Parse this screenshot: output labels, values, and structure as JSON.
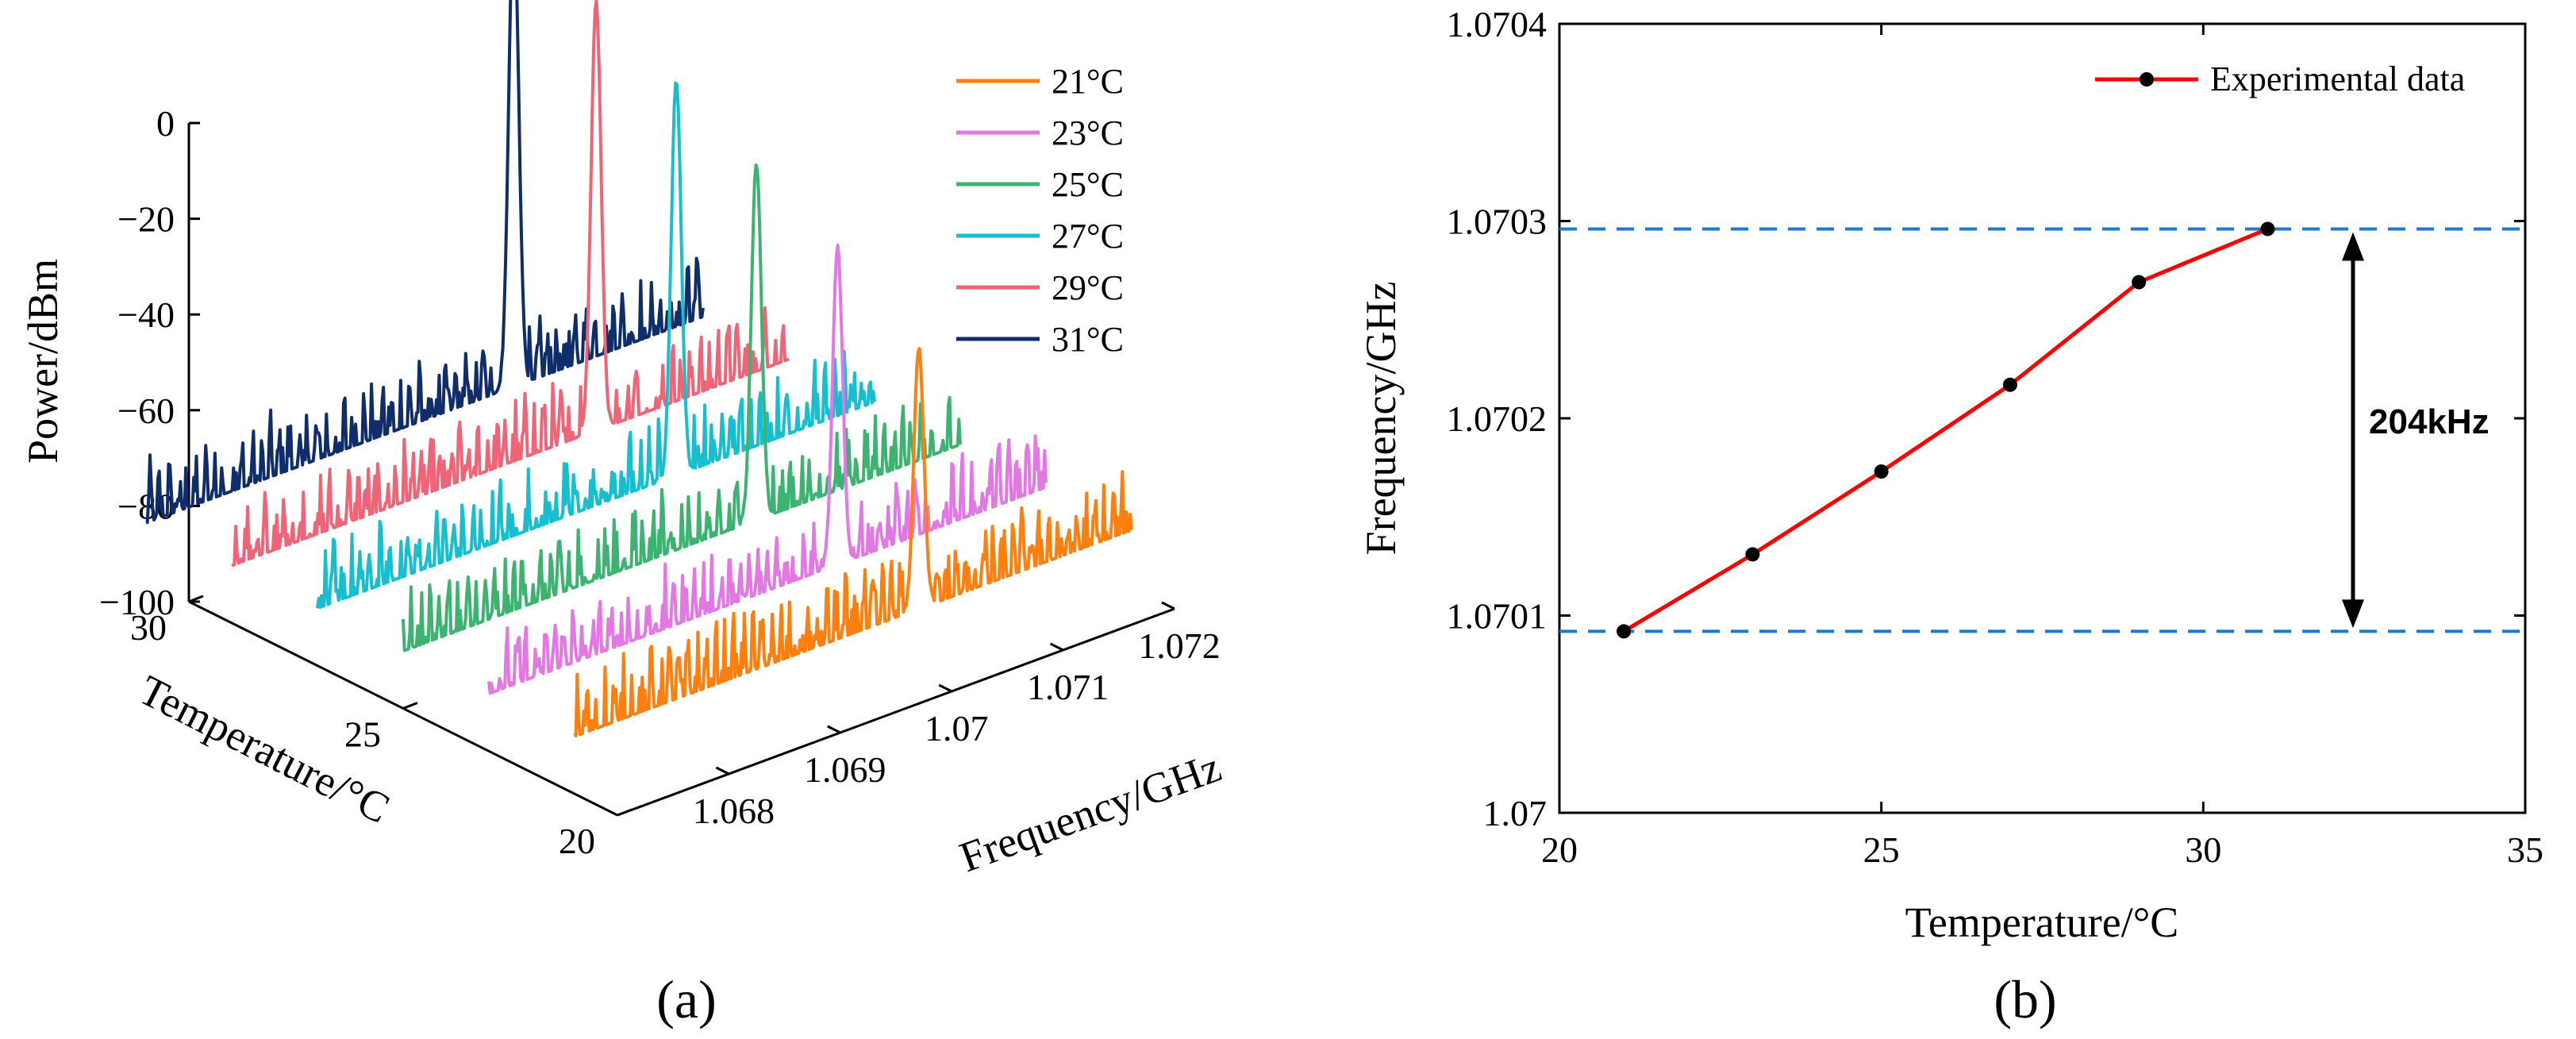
{
  "chart_data": [
    {
      "id": "a",
      "type": "line",
      "panel_label": "(a)",
      "projection": "3d-waterfall",
      "zlabel": "Power/dBm",
      "ylabel": "Temperature/°C",
      "xlabel": "Frequency/GHz",
      "zlim": [
        -100,
        0
      ],
      "z_ticks": [
        "0",
        "−20",
        "−40",
        "−60",
        "−80",
        "−100"
      ],
      "y_ticks": [
        "30",
        "25",
        "20"
      ],
      "x_ticks": [
        "1.068",
        "1.069",
        "1.07",
        "1.071",
        "1.072"
      ],
      "legend_position": "top-right",
      "series": [
        {
          "name": "21°C",
          "color": "#FF7F0E",
          "temperature": 21,
          "peak_freq": 1.07009,
          "peak_dbm": -33,
          "noise_dbm": -88
        },
        {
          "name": "23°C",
          "color": "#E377E3",
          "temperature": 23,
          "peak_freq": 1.07013,
          "peak_dbm": -22,
          "noise_dbm": -88
        },
        {
          "name": "25°C",
          "color": "#3CB371",
          "temperature": 25,
          "peak_freq": 1.07017,
          "peak_dbm": -13,
          "noise_dbm": -88
        },
        {
          "name": "27°C",
          "color": "#17BECF",
          "temperature": 27,
          "peak_freq": 1.07022,
          "peak_dbm": -5,
          "noise_dbm": -88
        },
        {
          "name": "29°C",
          "color": "#F06478",
          "temperature": 29,
          "peak_freq": 1.07027,
          "peak_dbm": 2,
          "noise_dbm": -88
        },
        {
          "name": "31°C",
          "color": "#0F2C6B",
          "temperature": 31,
          "peak_freq": 1.0703,
          "peak_dbm": 12,
          "noise_dbm": -88
        }
      ]
    },
    {
      "id": "b",
      "type": "line",
      "panel_label": "(b)",
      "xlabel": "Temperature/°C",
      "ylabel": "Frequency/GHz",
      "xlim": [
        20,
        35
      ],
      "ylim": [
        1.07,
        1.0704
      ],
      "x_ticks": [
        "20",
        "25",
        "30",
        "35"
      ],
      "y_ticks": [
        "1.07",
        "1.0701",
        "1.0702",
        "1.0703",
        "1.0704"
      ],
      "legend_position": "top-right",
      "series": [
        {
          "name": "Experimental data",
          "color": "#FF0000",
          "x": [
            21,
            23,
            25,
            27,
            29,
            31
          ],
          "y": [
            1.070092,
            1.070131,
            1.070173,
            1.070217,
            1.070269,
            1.070296
          ]
        }
      ],
      "reference_lines": [
        1.070092,
        1.070296
      ],
      "reference_color": "#1F77D4",
      "annotation": "204kHz"
    }
  ]
}
